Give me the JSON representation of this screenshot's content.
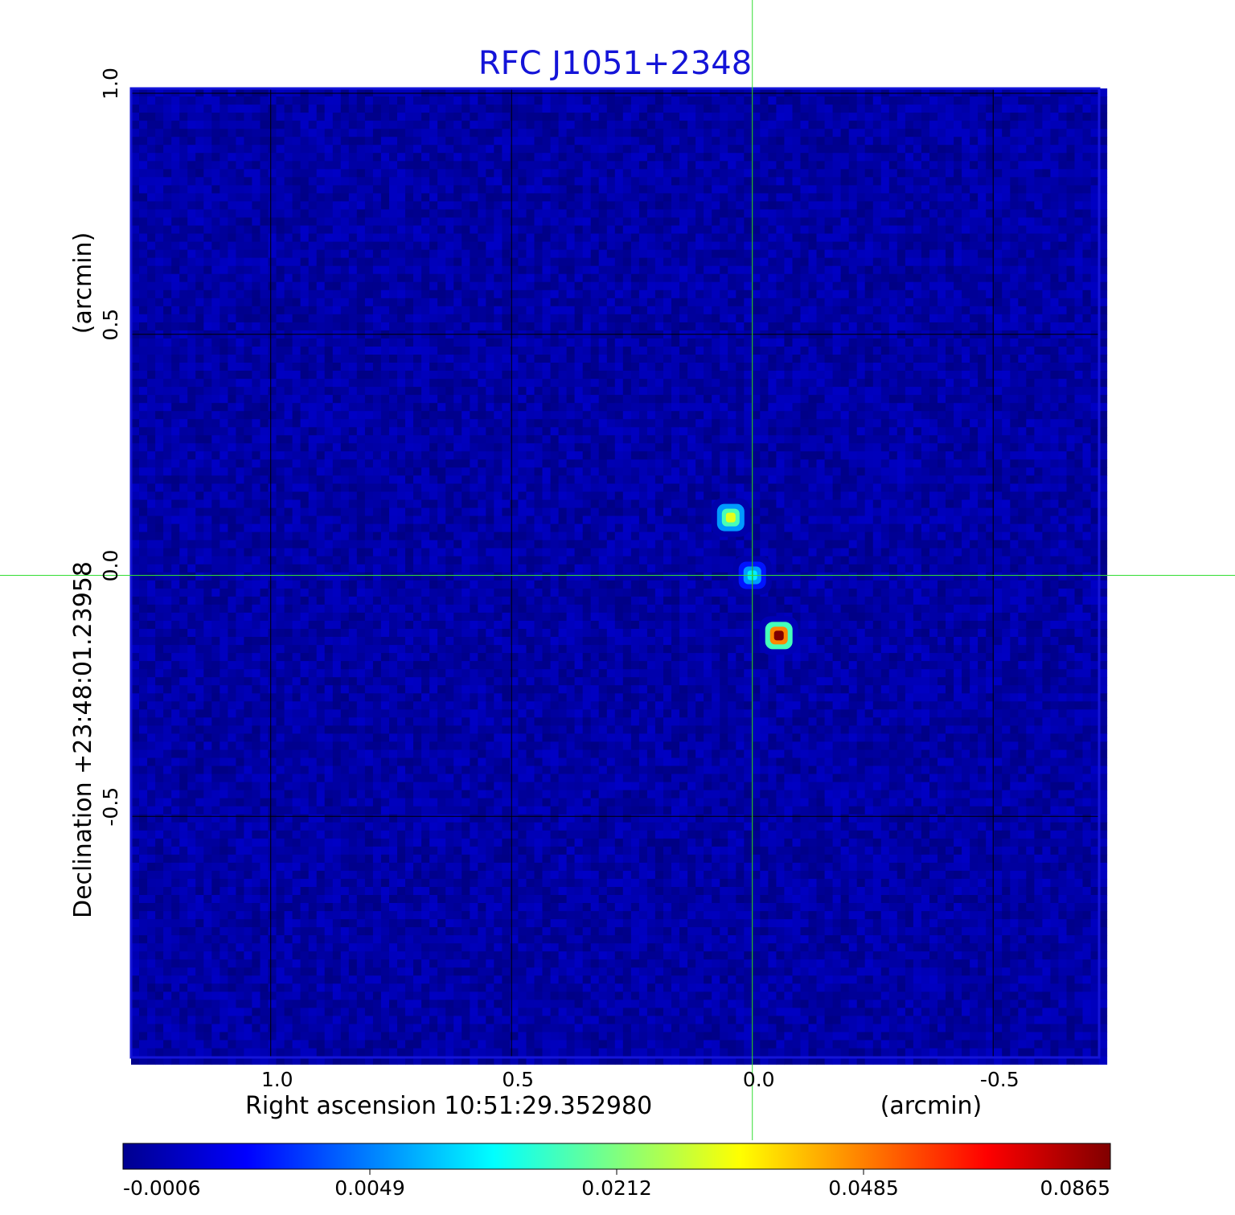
{
  "chart_data": {
    "type": "heatmap",
    "title": "RFC J1051+2348",
    "xlabel": "Right ascension  10:51:29.352980",
    "xunit": "(arcmin)",
    "ylabel": "Declination  +23:48:01.23958",
    "yunit": "(arcmin)",
    "x_ticks": [
      "1.0",
      "0.5",
      "0.0",
      "-0.5"
    ],
    "y_ticks": [
      "1.0",
      "0.5",
      "0.0",
      "-0.5"
    ],
    "x_tick_values": [
      1.0,
      0.5,
      0.0,
      -0.5
    ],
    "y_tick_values": [
      1.0,
      0.5,
      0.0,
      -0.5
    ],
    "xlim": [
      1.29,
      -0.72
    ],
    "ylim": [
      -1.0,
      1.01
    ],
    "grid": true,
    "crosshair": {
      "x": 0.0,
      "y": 0.0,
      "color": "#33dd33"
    },
    "colormap": "jet",
    "colorbar_ticks": [
      "-0.0006",
      "0.0049",
      "0.0212",
      "0.0485",
      "0.0865"
    ],
    "colorbar_values": [
      -0.0006,
      0.0049,
      0.0212,
      0.0485,
      0.0865
    ],
    "background_level": 0.0002,
    "sources": [
      {
        "x": 0.045,
        "y": 0.12,
        "peak": 0.032
      },
      {
        "x": 0.0,
        "y": 0.0,
        "peak": 0.012
      },
      {
        "x": -0.055,
        "y": -0.125,
        "peak": 0.0865
      }
    ]
  }
}
